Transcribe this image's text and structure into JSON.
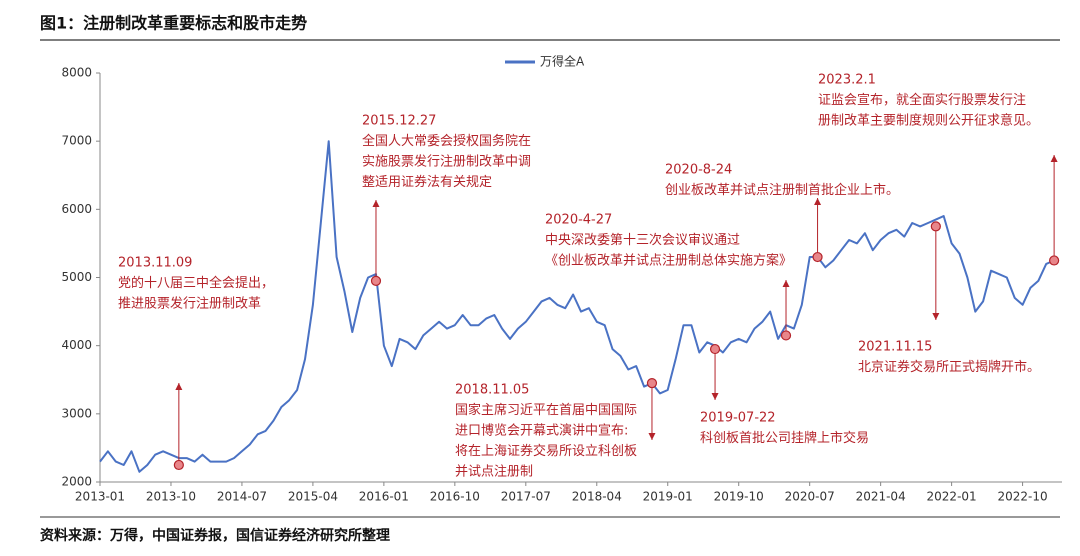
{
  "chart_data": {
    "type": "line",
    "title": "图1：注册制改革重要标志和股市走势",
    "source": "资料来源：万得，中国证券报，国信证券经济研究所整理",
    "x": [
      "2013-01",
      "2013-02",
      "2013-03",
      "2013-04",
      "2013-05",
      "2013-06",
      "2013-07",
      "2013-08",
      "2013-09",
      "2013-10",
      "2013-11",
      "2013-12",
      "2014-01",
      "2014-02",
      "2014-03",
      "2014-04",
      "2014-05",
      "2014-06",
      "2014-07",
      "2014-08",
      "2014-09",
      "2014-10",
      "2014-11",
      "2014-12",
      "2015-01",
      "2015-02",
      "2015-03",
      "2015-04",
      "2015-05",
      "2015-06",
      "2015-07",
      "2015-08",
      "2015-09",
      "2015-10",
      "2015-11",
      "2015-12",
      "2016-01",
      "2016-02",
      "2016-03",
      "2016-04",
      "2016-05",
      "2016-06",
      "2016-07",
      "2016-08",
      "2016-09",
      "2016-10",
      "2016-11",
      "2016-12",
      "2017-01",
      "2017-02",
      "2017-03",
      "2017-04",
      "2017-05",
      "2017-06",
      "2017-07",
      "2017-08",
      "2017-09",
      "2017-10",
      "2017-11",
      "2017-12",
      "2018-01",
      "2018-02",
      "2018-03",
      "2018-04",
      "2018-05",
      "2018-06",
      "2018-07",
      "2018-08",
      "2018-09",
      "2018-10",
      "2018-11",
      "2018-12",
      "2019-01",
      "2019-02",
      "2019-03",
      "2019-04",
      "2019-05",
      "2019-06",
      "2019-07",
      "2019-08",
      "2019-09",
      "2019-10",
      "2019-11",
      "2019-12",
      "2020-01",
      "2020-02",
      "2020-03",
      "2020-04",
      "2020-05",
      "2020-06",
      "2020-07",
      "2020-08",
      "2020-09",
      "2020-10",
      "2020-11",
      "2020-12",
      "2021-01",
      "2021-02",
      "2021-03",
      "2021-04",
      "2021-05",
      "2021-06",
      "2021-07",
      "2021-08",
      "2021-09",
      "2021-10",
      "2021-11",
      "2021-12",
      "2022-01",
      "2022-02",
      "2022-03",
      "2022-04",
      "2022-05",
      "2022-06",
      "2022-07",
      "2022-08",
      "2022-09",
      "2022-10",
      "2022-11",
      "2022-12",
      "2023-01",
      "2023-02"
    ],
    "series": [
      {
        "name": "万得全A",
        "color": "#4a72c4",
        "values": [
          2300,
          2450,
          2300,
          2250,
          2450,
          2150,
          2250,
          2400,
          2450,
          2400,
          2350,
          2350,
          2300,
          2400,
          2300,
          2300,
          2300,
          2350,
          2450,
          2550,
          2700,
          2750,
          2900,
          3100,
          3200,
          3350,
          3800,
          4600,
          5800,
          7000,
          5300,
          4800,
          4200,
          4700,
          5000,
          5050,
          4000,
          3700,
          4100,
          4050,
          3950,
          4150,
          4250,
          4350,
          4250,
          4300,
          4450,
          4300,
          4300,
          4400,
          4450,
          4250,
          4100,
          4250,
          4350,
          4500,
          4650,
          4700,
          4600,
          4550,
          4750,
          4500,
          4550,
          4350,
          4300,
          3950,
          3850,
          3650,
          3700,
          3400,
          3450,
          3300,
          3350,
          3800,
          4300,
          4300,
          3900,
          4050,
          4000,
          3900,
          4050,
          4100,
          4050,
          4250,
          4350,
          4500,
          4100,
          4300,
          4250,
          4600,
          5300,
          5300,
          5150,
          5250,
          5400,
          5550,
          5500,
          5650,
          5400,
          5550,
          5650,
          5700,
          5600,
          5800,
          5750,
          5800,
          5850,
          5900,
          5500,
          5350,
          5000,
          4500,
          4650,
          5100,
          5050,
          5000,
          4700,
          4600,
          4850,
          4950,
          5200,
          5250
        ]
      }
    ],
    "xlim": [
      "2013-01",
      "2023-03"
    ],
    "xticks": [
      "2013-01",
      "2013-10",
      "2014-07",
      "2015-04",
      "2016-01",
      "2016-10",
      "2017-07",
      "2018-04",
      "2019-01",
      "2019-10",
      "2020-07",
      "2021-04",
      "2022-01",
      "2022-10"
    ],
    "ylim": [
      2000,
      8000
    ],
    "yticks": [
      2000,
      3000,
      4000,
      5000,
      6000,
      7000,
      8000
    ],
    "annotation_color": "#b4232a",
    "annotations": [
      {
        "x": "2013-11",
        "y": 2250,
        "lines": [
          "2013.11.09",
          "党的十八届三中全会提出，",
          "推进股票发行注册制改革"
        ]
      },
      {
        "x": "2015-12",
        "y": 4950,
        "lines": [
          "2015.12.27",
          "全国人大常委会授权国务院在",
          "实施股票发行注册制改革中调",
          "整适用证券法有关规定"
        ]
      },
      {
        "x": "2018-11",
        "y": 3450,
        "lines": [
          "2018.11.05",
          "国家主席习近平在首届中国国际",
          "进口博览会开幕式演讲中宣布:",
          "将在上海证券交易所设立科创板",
          "并试点注册制"
        ]
      },
      {
        "x": "2019-07",
        "y": 3950,
        "lines": [
          "2019-07-22",
          "科创板首批公司挂牌上市交易"
        ]
      },
      {
        "x": "2020-04",
        "y": 4150,
        "lines": [
          "2020-4-27",
          "中央深改委第十三次会议审议通过",
          "《创业板改革并试点注册制总体实施方案》"
        ]
      },
      {
        "x": "2020-08",
        "y": 5300,
        "lines": [
          "2020-8-24",
          "创业板改革并试点注册制首批企业上市。"
        ]
      },
      {
        "x": "2021-11",
        "y": 5750,
        "lines": [
          "2021.11.15",
          "北京证券交易所正式揭牌开市。"
        ]
      },
      {
        "x": "2023-02",
        "y": 5250,
        "lines": [
          "2023.2.1",
          "证监会宣布，就全面实行股票发行注",
          "册制改革主要制度规则公开征求意见。"
        ]
      }
    ]
  }
}
